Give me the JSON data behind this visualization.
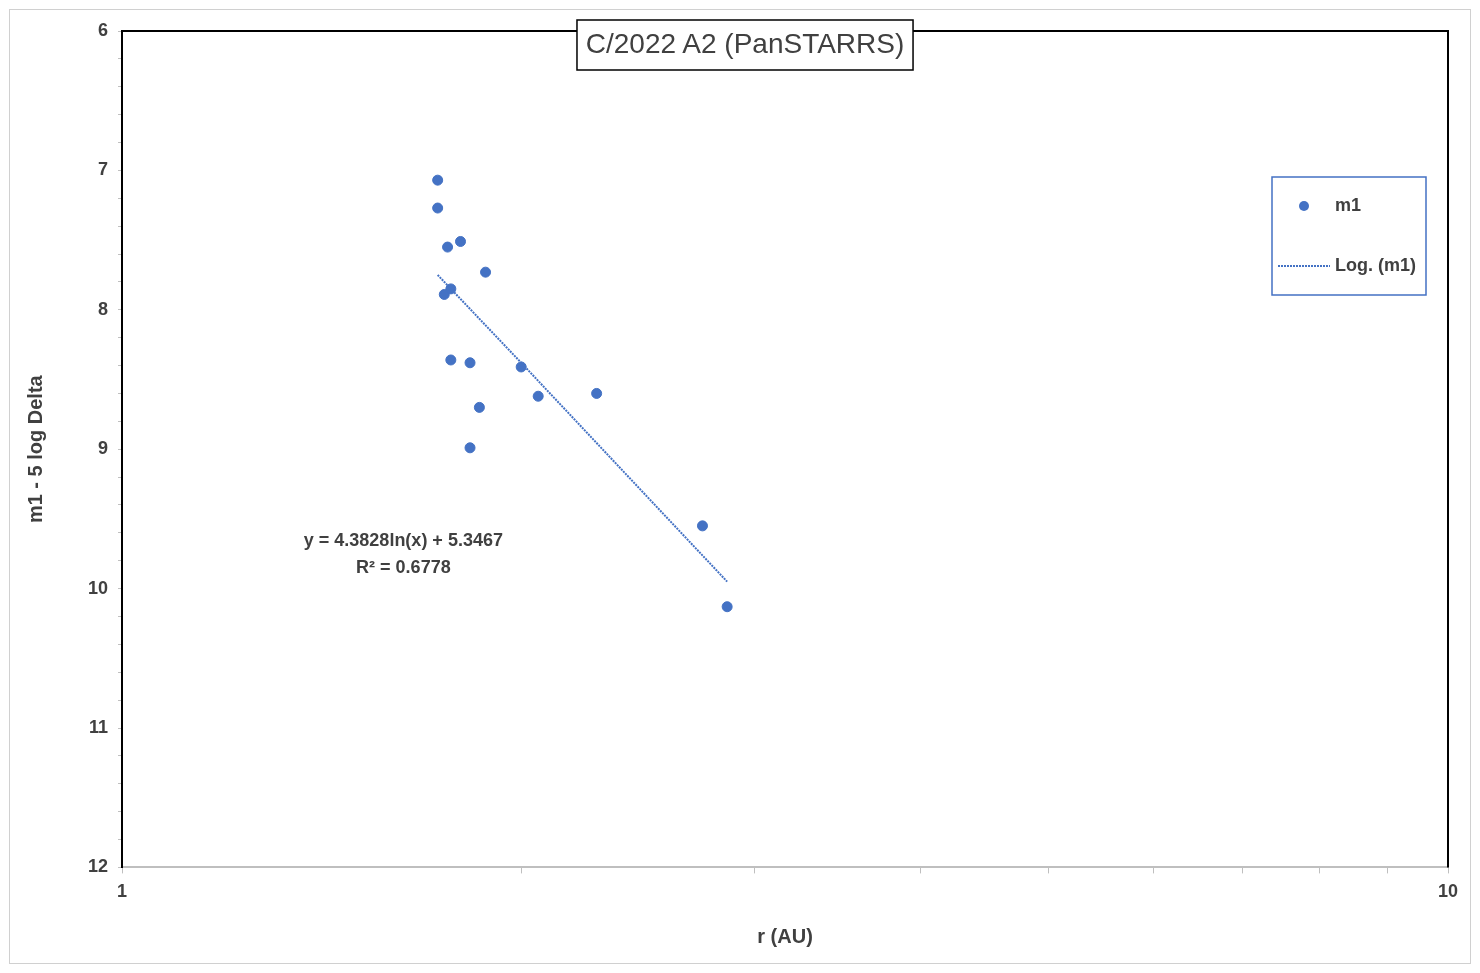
{
  "chart_data": {
    "type": "scatter",
    "title": "C/2022 A2 (PanSTARRS)",
    "xlabel": "r (AU)",
    "ylabel": "m1 - 5 log Delta",
    "log": "x",
    "xlim": [
      1,
      10
    ],
    "xticks": [
      1,
      {
        "value": 2,
        "label": null
      },
      {
        "value": 3,
        "label": null
      },
      {
        "value": 4,
        "label": null
      },
      {
        "value": 5,
        "label": null
      },
      {
        "value": 6,
        "label": null
      },
      {
        "value": 7,
        "label": null
      },
      {
        "value": 8,
        "label": null
      },
      {
        "value": 9,
        "label": null
      },
      10
    ],
    "ylim": [
      12,
      6
    ],
    "yticks": [
      6,
      {
        "value": 6.2,
        "label": null
      },
      {
        "value": 6.4,
        "label": null
      },
      {
        "value": 6.6,
        "label": null
      },
      {
        "value": 6.8,
        "label": null
      },
      7,
      {
        "value": 7.2,
        "label": null
      },
      {
        "value": 7.4,
        "label": null
      },
      {
        "value": 7.6,
        "label": null
      },
      {
        "value": 7.8,
        "label": null
      },
      8,
      {
        "value": 8.2,
        "label": null
      },
      {
        "value": 8.4,
        "label": null
      },
      {
        "value": 8.6,
        "label": null
      },
      {
        "value": 8.8,
        "label": null
      },
      9,
      {
        "value": 9.2,
        "label": null
      },
      {
        "value": 9.4,
        "label": null
      },
      {
        "value": 9.6,
        "label": null
      },
      {
        "value": 9.8,
        "label": null
      },
      10,
      {
        "value": 10.2,
        "label": null
      },
      {
        "value": 10.4,
        "label": null
      },
      {
        "value": 10.6,
        "label": null
      },
      {
        "value": 10.8,
        "label": null
      },
      11,
      {
        "value": 11.2,
        "label": null
      },
      {
        "value": 11.4,
        "label": null
      },
      {
        "value": 11.6,
        "label": null
      },
      {
        "value": 11.8,
        "label": null
      },
      12
    ],
    "grid": false,
    "legend": "top right",
    "annotations": [
      "y = 4.3828ln(x) + 5.3467",
      "R² = 0.6778"
    ],
    "series": [
      {
        "name": "m1",
        "marker": "circle",
        "color": "#4472c4",
        "x": [
          1.73,
          1.73,
          1.76,
          1.8,
          1.88,
          1.75,
          1.77,
          1.77,
          1.83,
          1.86,
          1.83,
          2.0,
          2.06,
          2.28,
          2.74,
          2.86
        ],
        "values": [
          7.07,
          7.27,
          7.55,
          7.51,
          7.73,
          7.89,
          7.85,
          8.36,
          8.38,
          8.7,
          8.99,
          8.41,
          8.62,
          8.6,
          9.55,
          10.13
        ]
      },
      {
        "name": "Log. (m1)",
        "type": "line",
        "marker": "none",
        "line_style": "dotted",
        "color": "#4472c4",
        "x": [
          1.73,
          2.0,
          2.5,
          2.86
        ],
        "values": [
          7.75,
          8.38,
          9.36,
          9.95
        ]
      }
    ]
  }
}
